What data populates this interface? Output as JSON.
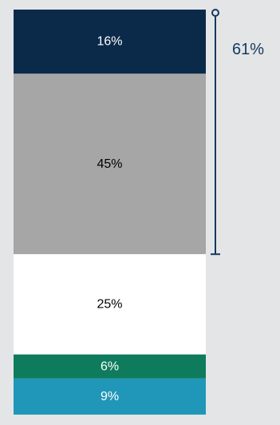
{
  "chart_data": {
    "type": "bar",
    "stacked": true,
    "orientation": "vertical",
    "categories": [
      ""
    ],
    "series": [
      {
        "label": "16%",
        "value": 16,
        "color": "#0b2a4a",
        "text_color": "#ffffff"
      },
      {
        "label": "45%",
        "value": 45,
        "color": "#a6a6a6",
        "text_color": "#000000"
      },
      {
        "label": "25%",
        "value": 25,
        "color": "#ffffff",
        "text_color": "#000000"
      },
      {
        "label": "6%",
        "value": 6,
        "color": "#0e7c5c",
        "text_color": "#ffffff"
      },
      {
        "label": "9%",
        "value": 9,
        "color": "#2097b8",
        "text_color": "#ffffff"
      }
    ],
    "bracket": {
      "label": "61%",
      "value": 61,
      "covers_segments": [
        0,
        1
      ],
      "color": "#123a5a"
    },
    "grid": false,
    "legend": "none"
  }
}
